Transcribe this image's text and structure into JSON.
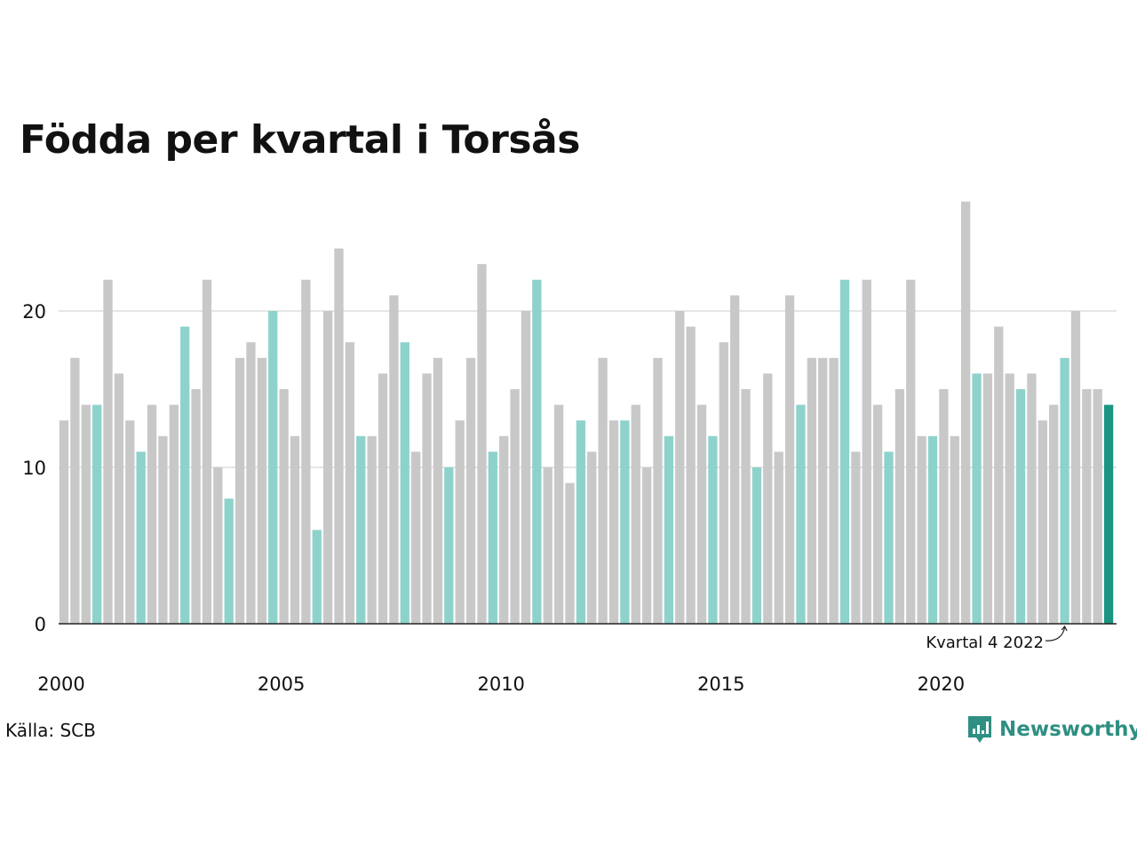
{
  "chart_data": {
    "type": "bar",
    "title": "Födda per kvartal i Torsås",
    "source": "Källa: SCB",
    "brand": "Newsworthy",
    "annotation": "Kvartal 4 2022",
    "x_tick_labels": [
      "2000",
      "2005",
      "2010",
      "2015",
      "2020"
    ],
    "y_ticks": [
      0,
      10,
      20
    ],
    "ylim": [
      0,
      27
    ],
    "grid": true,
    "start_year": 2000,
    "annotated_index": 91,
    "colors": {
      "default": "#c8c8c8",
      "q1": "#8dd3cb",
      "latest": "#1a9584"
    },
    "values": [
      13,
      17,
      14,
      14,
      22,
      16,
      13,
      11,
      14,
      12,
      14,
      19,
      15,
      22,
      10,
      8,
      17,
      18,
      17,
      20,
      15,
      12,
      22,
      6,
      20,
      24,
      18,
      12,
      12,
      16,
      21,
      18,
      11,
      16,
      17,
      10,
      13,
      17,
      23,
      11,
      12,
      15,
      20,
      22,
      10,
      14,
      9,
      13,
      11,
      17,
      13,
      13,
      14,
      10,
      17,
      12,
      20,
      19,
      14,
      12,
      18,
      21,
      15,
      10,
      16,
      11,
      21,
      14,
      17,
      17,
      17,
      22,
      11,
      22,
      14,
      11,
      15,
      22,
      12,
      12,
      15,
      12,
      27,
      16,
      16,
      19,
      16,
      15,
      16,
      13,
      14,
      17,
      20,
      15,
      15,
      14
    ]
  }
}
